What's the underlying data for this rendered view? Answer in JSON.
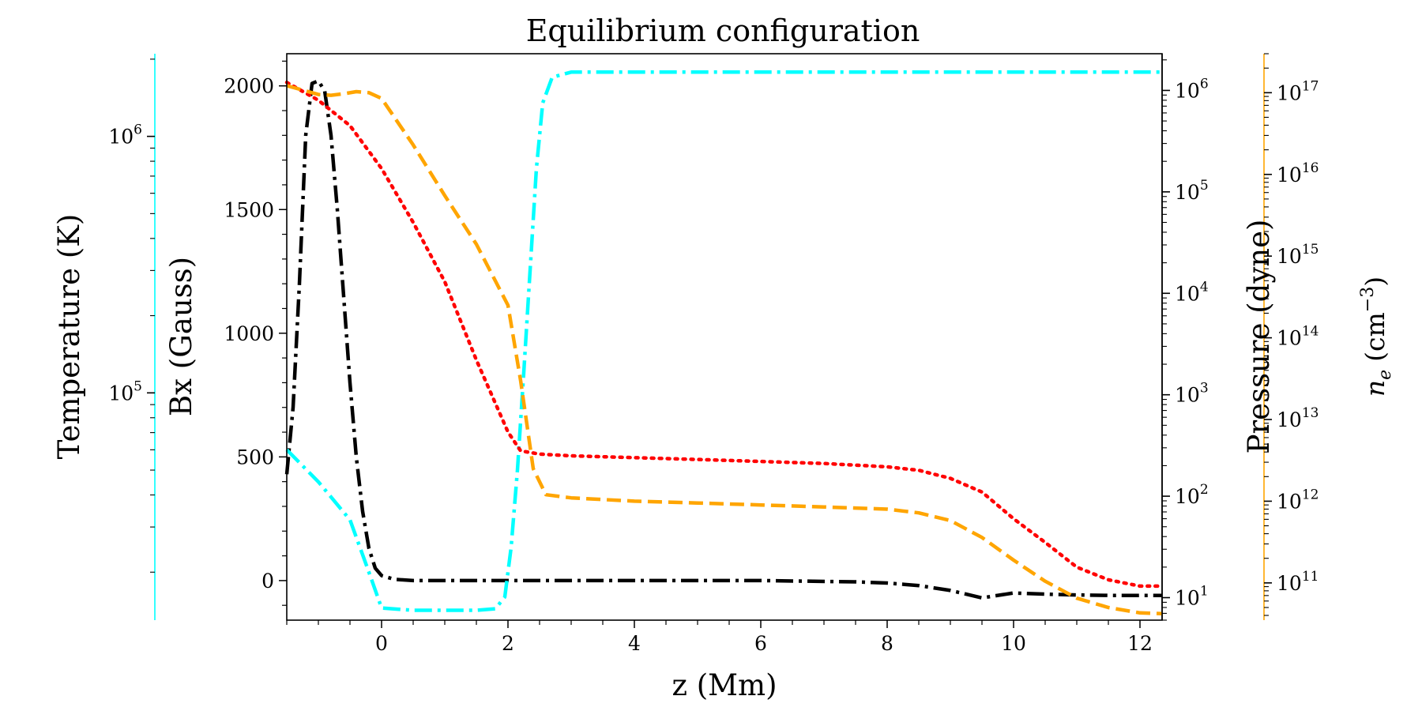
{
  "chart_data": {
    "type": "line",
    "title": "Equilibrium configuration",
    "xlabel": "z (Mm)",
    "xlim": [
      -1.5,
      12.35
    ],
    "xticks": [
      "0",
      "2",
      "4",
      "6",
      "8",
      "10",
      "12"
    ],
    "axes": {
      "bx": {
        "label": "Bx (Gauss)",
        "scale": "linear",
        "ylim": [
          -160,
          2130
        ],
        "ticks": [
          "0",
          "500",
          "1000",
          "1500",
          "2000"
        ]
      },
      "temperature": {
        "label": "Temperature (K)",
        "scale": "log",
        "ylim": [
          13000,
          2100000
        ],
        "ticks": [
          {
            "base": "10",
            "exp": "6"
          },
          {
            "base": "10",
            "exp": "5"
          }
        ],
        "color": "#00ffff"
      },
      "pressure": {
        "label": "Pressure (dyne)",
        "scale": "log",
        "ylim": [
          6.0,
          2300000
        ],
        "ticks": [
          {
            "base": "10",
            "exp": "6"
          },
          {
            "base": "10",
            "exp": "5"
          },
          {
            "base": "10",
            "exp": "4"
          },
          {
            "base": "10",
            "exp": "3"
          },
          {
            "base": "10",
            "exp": "2"
          },
          {
            "base": "10",
            "exp": "1"
          }
        ]
      },
      "ne": {
        "label": "n",
        "label_sub": "e",
        "label_unit": "(cm",
        "label_unit_sup": "−3",
        "label_unit_end": ")",
        "scale": "log",
        "ylim": [
          35000000000.0,
          3e+17
        ],
        "ticks": [
          {
            "base": "10",
            "exp": "17"
          },
          {
            "base": "10",
            "exp": "16"
          },
          {
            "base": "10",
            "exp": "15"
          },
          {
            "base": "10",
            "exp": "14"
          },
          {
            "base": "10",
            "exp": "13"
          },
          {
            "base": "10",
            "exp": "12"
          },
          {
            "base": "10",
            "exp": "11"
          }
        ],
        "color": "#ffa500"
      }
    },
    "series": [
      {
        "axis": "bx",
        "color": "#000000",
        "style": "dashdot",
        "x": [
          -1.5,
          -1.4,
          -1.3,
          -1.2,
          -1.1,
          -1.0,
          -0.9,
          -0.8,
          -0.7,
          -0.6,
          -0.5,
          -0.4,
          -0.3,
          -0.2,
          -0.1,
          0.0,
          0.2,
          0.5,
          1.0,
          2.0,
          4.0,
          6.0,
          7.5,
          8.0,
          8.5,
          9.0,
          9.5,
          10.0,
          10.5,
          11.0,
          11.5,
          12.35
        ],
        "y": [
          430,
          700,
          1200,
          1800,
          2010,
          2020,
          1980,
          1800,
          1500,
          1150,
          800,
          500,
          280,
          130,
          50,
          20,
          5,
          0,
          0,
          0,
          0,
          0,
          -5,
          -10,
          -20,
          -40,
          -70,
          -50,
          -55,
          -58,
          -60,
          -60
        ]
      },
      {
        "axis": "temperature",
        "color": "#00ffff",
        "style": "dashdot",
        "x": [
          -1.5,
          -1.0,
          -0.5,
          -0.2,
          0.0,
          0.5,
          1.0,
          1.5,
          1.8,
          1.95,
          2.05,
          2.15,
          2.25,
          2.35,
          2.45,
          2.55,
          2.7,
          3.0,
          6.0,
          9.0,
          12.35
        ],
        "y": [
          60000,
          45000,
          32000,
          20000,
          14500,
          14200,
          14200,
          14200,
          14400,
          16000,
          25000,
          50000,
          120000,
          300000,
          750000,
          1350000,
          1700000,
          1780000,
          1780000,
          1780000,
          1780000
        ]
      },
      {
        "axis": "pressure",
        "color": "#ff0000",
        "style": "dotted",
        "x": [
          -1.5,
          -1.0,
          -0.5,
          0.0,
          0.5,
          1.0,
          1.5,
          2.0,
          2.2,
          2.5,
          3.0,
          4.0,
          5.0,
          6.0,
          7.0,
          8.0,
          8.5,
          9.0,
          9.5,
          10.0,
          10.5,
          11.0,
          11.5,
          12.0,
          12.35
        ],
        "y": [
          1200000,
          800000,
          450000,
          170000,
          50000,
          13000,
          2200,
          430,
          280,
          260,
          250,
          240,
          230,
          220,
          210,
          195,
          180,
          150,
          110,
          60,
          35,
          20,
          15,
          13,
          13
        ]
      },
      {
        "axis": "ne",
        "color": "#ffa500",
        "style": "dashed",
        "x": [
          -1.5,
          -1.0,
          -0.8,
          -0.6,
          -0.4,
          -0.2,
          0.0,
          0.5,
          1.0,
          1.5,
          2.0,
          2.2,
          2.4,
          2.6,
          3.0,
          4.0,
          5.0,
          6.0,
          7.0,
          8.0,
          8.5,
          9.0,
          9.5,
          10.0,
          10.5,
          11.0,
          11.5,
          12.0,
          12.35
        ],
        "y": [
          1.22e+17,
          9.5e+16,
          9.3e+16,
          9.7e+16,
          1.03e+17,
          1e+17,
          8.5e+16,
          2.3e+16,
          5500000000000000.0,
          1400000000000000.0,
          250000000000000.0,
          30000000000000.0,
          2500000000000.0,
          1200000000000.0,
          1100000000000.0,
          1000000000000.0,
          950000000000.0,
          900000000000.0,
          850000000000.0,
          800000000000.0,
          720000000000.0,
          580000000000.0,
          360000000000.0,
          190000000000.0,
          105000000000.0,
          65000000000.0,
          50000000000.0,
          43000000000.0,
          42000000000.0
        ]
      }
    ]
  }
}
